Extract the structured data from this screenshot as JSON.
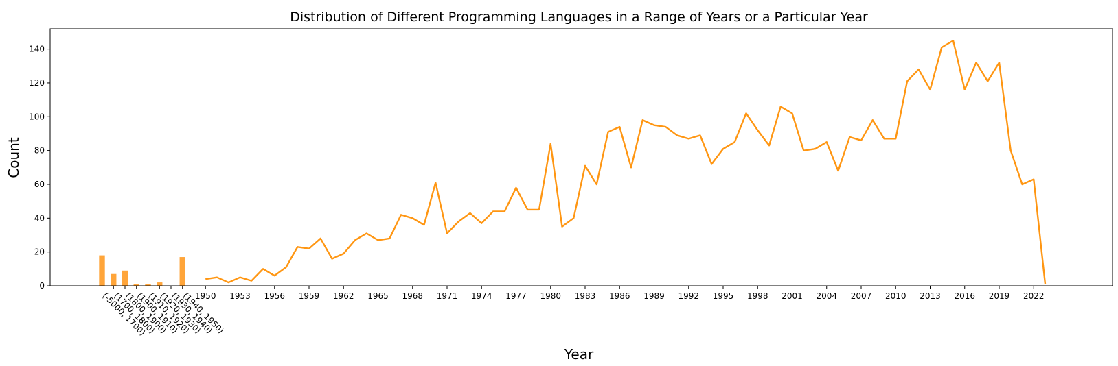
{
  "chart_data": {
    "type": "bar+line",
    "title": "Distribution of Different Programming Languages in a Range of Years or a Particular Year",
    "xlabel": "Year",
    "ylabel": "Count",
    "ylim": [
      0,
      152
    ],
    "y_ticks": [
      0,
      20,
      40,
      60,
      80,
      100,
      120,
      140
    ],
    "grid": false,
    "colors": {
      "bar": "#ffa53a",
      "line": "#ff9612"
    },
    "bars": {
      "categories": [
        "(-5000, 1700)",
        "(1700, 1800)",
        "(1800, 1900)",
        "(1900, 1910)",
        "(1910, 1920)",
        "(1920, 1930)",
        "(1930, 1940)",
        "(1940, 1950)"
      ],
      "values": [
        18,
        7,
        9,
        1,
        1,
        2,
        0,
        17
      ]
    },
    "line": {
      "x": [
        1950,
        1951,
        1952,
        1953,
        1954,
        1955,
        1956,
        1957,
        1958,
        1959,
        1960,
        1961,
        1962,
        1963,
        1964,
        1965,
        1966,
        1967,
        1968,
        1969,
        1970,
        1971,
        1972,
        1973,
        1974,
        1975,
        1976,
        1977,
        1978,
        1979,
        1980,
        1981,
        1982,
        1983,
        1984,
        1985,
        1986,
        1987,
        1988,
        1989,
        1990,
        1991,
        1992,
        1993,
        1994,
        1995,
        1996,
        1997,
        1998,
        1999,
        2000,
        2001,
        2002,
        2003,
        2004,
        2005,
        2006,
        2007,
        2008,
        2009,
        2010,
        2011,
        2012,
        2013,
        2014,
        2015,
        2016,
        2017,
        2018,
        2019,
        2020,
        2021,
        2022,
        2023
      ],
      "values": [
        4,
        5,
        2,
        5,
        3,
        10,
        6,
        11,
        23,
        22,
        28,
        16,
        19,
        27,
        31,
        27,
        28,
        42,
        40,
        36,
        61,
        31,
        38,
        43,
        37,
        44,
        44,
        58,
        45,
        45,
        84,
        35,
        40,
        71,
        60,
        91,
        94,
        70,
        98,
        95,
        94,
        89,
        87,
        89,
        72,
        81,
        85,
        102,
        92,
        83,
        106,
        102,
        80,
        81,
        85,
        68,
        88,
        86,
        98,
        87,
        87,
        121,
        128,
        116,
        141,
        145,
        116,
        132,
        121,
        132,
        80,
        60,
        63,
        1
      ]
    },
    "x_tick_labels": [
      "(-5000, 1700)",
      "(1700, 1800)",
      "(1800, 1900)",
      "(1900, 1910)",
      "(1910, 1920)",
      "(1920, 1930)",
      "(1930, 1940)",
      "(1940, 1950)",
      "1950",
      "1953",
      "1956",
      "1959",
      "1962",
      "1965",
      "1968",
      "1971",
      "1974",
      "1977",
      "1980",
      "1983",
      "1986",
      "1989",
      "1992",
      "1995",
      "1998",
      "2001",
      "2004",
      "2007",
      "2010",
      "2013",
      "2016",
      "2019",
      "2022"
    ]
  }
}
